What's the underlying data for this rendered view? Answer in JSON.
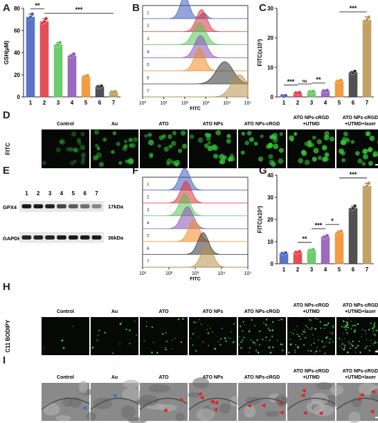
{
  "colors": {
    "g1": "#3b5bbf",
    "g2": "#e0303a",
    "g3": "#55c255",
    "g4": "#8a52b5",
    "g5": "#f08a24",
    "g6": "#333333",
    "g7": "#b8924a",
    "fluor": "#36c93a",
    "tem": "#9a9a9a",
    "arrow_red": "#e02020",
    "arrow_blue": "#2a6fd6"
  },
  "panels": {
    "A": "A",
    "B": "B",
    "C": "C",
    "D": "D",
    "E": "E",
    "F": "F",
    "G": "G",
    "H": "H",
    "I": "I"
  },
  "groups": [
    "Control",
    "Au",
    "ATO",
    "ATO NPs",
    "ATO NPs-cRGD",
    "ATO NPs-cRGD +UTMD",
    "ATO NPs-cRGD +UTMD+laser"
  ],
  "group_lines": [
    [
      "Control"
    ],
    [
      "Au"
    ],
    [
      "ATO"
    ],
    [
      "ATO NPs"
    ],
    [
      "ATO NPs-cRGD"
    ],
    [
      "ATO NPs-cRGD",
      "+UTMD"
    ],
    [
      "ATO NPs-cRGD",
      "+UTMD+laser"
    ]
  ],
  "row_labels": {
    "D": "FITC",
    "H": "C11 BODIPY"
  },
  "lanes": [
    "1",
    "2",
    "3",
    "4",
    "5",
    "6",
    "7"
  ],
  "western": {
    "bands": [
      {
        "name": "GPX4",
        "kda": "17kDa",
        "intensity": [
          0.95,
          0.95,
          0.9,
          0.75,
          0.65,
          0.55,
          0.45
        ]
      },
      {
        "name": "GAPDH",
        "kda": "36kDa",
        "intensity": [
          0.9,
          0.9,
          0.9,
          0.95,
          0.95,
          0.95,
          0.95
        ]
      }
    ]
  },
  "chart_data": [
    {
      "panel": "A",
      "type": "bar",
      "ylabel": "GSH(μM)",
      "ylim": [
        0,
        80
      ],
      "yticks": [
        0,
        20,
        40,
        60,
        80
      ],
      "categories": [
        "1",
        "2",
        "3",
        "4",
        "5",
        "6",
        "7"
      ],
      "values": [
        72,
        68,
        47,
        37,
        18,
        9,
        4
      ],
      "significance": [
        {
          "from": "1",
          "to": "2",
          "label": "**"
        },
        {
          "from": "2",
          "to": "7",
          "label": "***"
        }
      ]
    },
    {
      "panel": "B",
      "type": "histogram",
      "xlabel": "FITC",
      "xscale": "log",
      "xticks": [
        "10⁰",
        "10¹",
        "10²",
        "10³",
        "10⁴",
        "10⁵"
      ],
      "tracks": [
        "1",
        "2",
        "3",
        "4",
        "5",
        "6",
        "7"
      ],
      "peaks_log10": [
        2.0,
        2.8,
        2.7,
        2.75,
        2.7,
        3.9,
        4.6
      ],
      "peak_widths": [
        0.22,
        0.25,
        0.3,
        0.28,
        0.25,
        0.4,
        0.38
      ]
    },
    {
      "panel": "C",
      "type": "bar",
      "ylabel": "FITC(x10³)",
      "ylim": [
        0,
        30
      ],
      "yticks": [
        0,
        10,
        20,
        30
      ],
      "categories": [
        "1",
        "2",
        "3",
        "4",
        "5",
        "6",
        "7"
      ],
      "values": [
        0.2,
        1.2,
        1.6,
        1.9,
        5.2,
        8.2,
        26
      ],
      "significance": [
        {
          "from": "1",
          "to": "2",
          "label": "***"
        },
        {
          "from": "2",
          "to": "3",
          "label": "ns"
        },
        {
          "from": "3",
          "to": "4",
          "label": "**"
        },
        {
          "from": "5",
          "to": "7",
          "label": "***"
        }
      ]
    },
    {
      "panel": "F",
      "type": "histogram",
      "xlabel": "FITC",
      "xscale": "log",
      "xticks": [
        "10¹",
        "10²",
        "10³",
        "10⁴",
        "10⁵"
      ],
      "tracks": [
        "1",
        "2",
        "3",
        "4",
        "5",
        "6",
        "7"
      ],
      "peaks_log10": [
        2.6,
        2.65,
        2.6,
        2.7,
        2.95,
        3.3,
        3.45
      ],
      "peak_widths": [
        0.2,
        0.2,
        0.2,
        0.22,
        0.2,
        0.2,
        0.22
      ]
    },
    {
      "panel": "G",
      "type": "bar",
      "ylabel": "FITC(x10³)",
      "ylim": [
        0,
        40
      ],
      "yticks": [
        0,
        10,
        20,
        30,
        40
      ],
      "categories": [
        "1",
        "2",
        "3",
        "4",
        "5",
        "6",
        "7"
      ],
      "values": [
        4.5,
        5.0,
        5.9,
        12,
        14,
        25,
        35
      ],
      "significance": [
        {
          "from": "2",
          "to": "3",
          "label": "**"
        },
        {
          "from": "3",
          "to": "4",
          "label": "***"
        },
        {
          "from": "4",
          "to": "5",
          "label": "*"
        },
        {
          "from": "5",
          "to": "7",
          "label": "***"
        }
      ]
    }
  ],
  "micro": {
    "D_intensity": [
      0.25,
      0.6,
      0.7,
      0.8,
      0.85,
      0.9,
      0.9
    ],
    "H_intensity": [
      0.05,
      0.15,
      0.2,
      0.35,
      0.55,
      0.75,
      0.9
    ],
    "I_arrows": [
      [
        0,
        1
      ],
      [
        0,
        1
      ],
      [
        2,
        0
      ],
      [
        5,
        0
      ],
      [
        4,
        0
      ],
      [
        4,
        0
      ],
      [
        4,
        0
      ]
    ]
  }
}
